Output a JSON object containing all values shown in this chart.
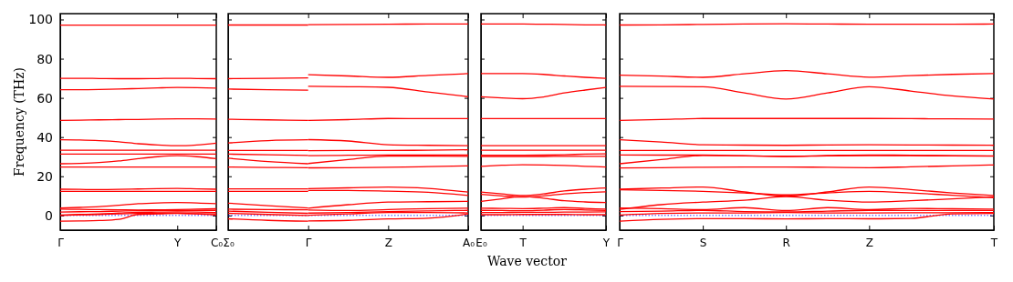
{
  "chart_data": [
    {
      "type": "line",
      "ylabel": "Frequency (THz)",
      "categories": [
        "Γ",
        null,
        null,
        null,
        null,
        null,
        "Y",
        null,
        "C₀"
      ],
      "ylim": [
        -7.5,
        103
      ],
      "yticks": [
        0,
        20,
        40,
        60,
        80,
        100
      ],
      "ref_lines": [
        {
          "axis": "y",
          "value": 0,
          "color": "#0000ff",
          "line_style": "dotted"
        }
      ],
      "series": [
        {
          "color": "#ff0000",
          "values": [
            97.1,
            97.1,
            97.1,
            97.1,
            97.1,
            97.1,
            97.1,
            97.1,
            97.1
          ]
        },
        {
          "color": "#ff0000",
          "values": [
            70,
            70,
            69.9,
            69.8,
            69.8,
            69.9,
            70,
            69.9,
            69.8
          ]
        },
        {
          "color": "#ff0000",
          "values": [
            64.2,
            64.2,
            64.3,
            64.5,
            64.8,
            65.1,
            65.3,
            65.2,
            65
          ]
        },
        {
          "color": "#ff0000",
          "values": [
            48.5,
            48.6,
            48.8,
            48.9,
            49,
            49.2,
            49.3,
            49.3,
            49.2
          ]
        },
        {
          "color": "#ff0000",
          "values": [
            38.6,
            38.5,
            38.2,
            37.6,
            36.6,
            36,
            35.6,
            36,
            36.9
          ]
        },
        {
          "color": "#ff0000",
          "values": [
            33.3,
            33.3,
            33.3,
            33.3,
            33.3,
            33.3,
            33.3,
            33.3,
            33.3
          ]
        },
        {
          "color": "#ff0000",
          "values": [
            31.3,
            31.3,
            31.3,
            31.3,
            31.3,
            31.3,
            31.3,
            31.3,
            31.3
          ]
        },
        {
          "color": "#ff0000",
          "values": [
            26.4,
            26.6,
            27,
            27.8,
            29,
            30,
            30.5,
            30,
            29
          ]
        },
        {
          "color": "#ff0000",
          "values": [
            24.7,
            24.7,
            24.7,
            24.7,
            24.7,
            24.7,
            24.7,
            24.7,
            24.7
          ]
        },
        {
          "color": "#ff0000",
          "values": [
            13.4,
            13.3,
            13.2,
            13.3,
            13.5,
            13.7,
            13.8,
            13.6,
            13.4
          ]
        },
        {
          "color": "#ff0000",
          "values": [
            12.3,
            12.3,
            12.3,
            12.3,
            12.3,
            12.3,
            12.3,
            12.3,
            12.3
          ]
        },
        {
          "color": "#ff0000",
          "values": [
            3.8,
            4.1,
            4.5,
            5.2,
            6,
            6.4,
            6.6,
            6.4,
            6
          ]
        },
        {
          "color": "#ff0000",
          "values": [
            3.2,
            3.1,
            3,
            2.9,
            2.8,
            2.9,
            3,
            3.2,
            3.4
          ]
        },
        {
          "color": "#ff0000",
          "values": [
            1.7,
            1.9,
            2,
            2.2,
            2.4,
            2.5,
            2.5,
            2.6,
            2.6
          ]
        },
        {
          "color": "#ff0000",
          "values": [
            0.2,
            0.5,
            0.8,
            1.2,
            1.6,
            1.7,
            1.8,
            1.7,
            1.5
          ]
        },
        {
          "color": "#ff0000",
          "values": [
            0,
            0.3,
            0.5,
            0.8,
            1,
            1.1,
            1.2,
            0.8,
            0.2
          ]
        },
        {
          "color": "#ff0000",
          "values": [
            -2.9,
            -2.8,
            -2.6,
            -2,
            0.5,
            0.8,
            1,
            0.9,
            0.8
          ]
        }
      ]
    },
    {
      "type": "line",
      "tick_labels": "x",
      "categories": [
        "Σ₀",
        null,
        "Γ",
        null,
        "Z",
        null,
        "A₀"
      ],
      "ylim": [
        -7.5,
        103
      ],
      "yticks": [
        0,
        20,
        40,
        60,
        80,
        100
      ],
      "ref_lines": [
        {
          "axis": "y",
          "value": 0,
          "color": "#0000ff",
          "line_style": "dotted"
        }
      ],
      "series": [
        {
          "color": "#ff0000",
          "values": [
            97.2,
            97.2,
            97.2,
            null,
            null,
            null,
            null
          ]
        },
        {
          "color": "#ff0000",
          "values": [
            69.8,
            70,
            70.2,
            null,
            null,
            null,
            null
          ]
        },
        {
          "color": "#ff0000",
          "values": [
            64.5,
            64.2,
            63.9,
            null,
            null,
            null,
            null
          ]
        },
        {
          "color": "#ff0000",
          "values": [
            49.1,
            48.8,
            48.5,
            null,
            null,
            null,
            null
          ]
        },
        {
          "color": "#ff0000",
          "values": [
            37,
            38.2,
            38.6,
            null,
            null,
            null,
            null
          ]
        },
        {
          "color": "#ff0000",
          "values": [
            33.2,
            33.2,
            33.2,
            null,
            null,
            null,
            null
          ]
        },
        {
          "color": "#ff0000",
          "values": [
            31.3,
            31,
            30.6,
            null,
            null,
            null,
            null
          ]
        },
        {
          "color": "#ff0000",
          "values": [
            29.2,
            27.5,
            26.4,
            null,
            null,
            null,
            null
          ]
        },
        {
          "color": "#ff0000",
          "values": [
            24.7,
            24.5,
            24.4,
            null,
            null,
            null,
            null
          ]
        },
        {
          "color": "#ff0000",
          "values": [
            13.6,
            13.6,
            13.6,
            null,
            null,
            null,
            null
          ]
        },
        {
          "color": "#ff0000",
          "values": [
            12.3,
            12.3,
            12.3,
            null,
            null,
            null,
            null
          ]
        },
        {
          "color": "#ff0000",
          "values": [
            6.3,
            5,
            3.8,
            null,
            null,
            null,
            null
          ]
        },
        {
          "color": "#ff0000",
          "values": [
            3.2,
            3,
            2.9,
            null,
            null,
            null,
            null
          ]
        },
        {
          "color": "#ff0000",
          "values": [
            2.2,
            1.6,
            1.1,
            null,
            null,
            null,
            null
          ]
        },
        {
          "color": "#ff0000",
          "values": [
            1.1,
            0.5,
            0,
            null,
            null,
            null,
            null
          ]
        },
        {
          "color": "#ff0000",
          "values": [
            -1.7,
            -2.5,
            -2.9,
            null,
            null,
            null,
            null
          ]
        },
        {
          "color": "#ff0000",
          "values": [
            null,
            null,
            97.4,
            97.5,
            97.6,
            97.7,
            97.7
          ]
        },
        {
          "color": "#ff0000",
          "values": [
            null,
            null,
            71.8,
            71.2,
            70.5,
            71.5,
            72.4
          ]
        },
        {
          "color": "#ff0000",
          "values": [
            null,
            null,
            65.9,
            65.7,
            65.4,
            63,
            60.6
          ]
        },
        {
          "color": "#ff0000",
          "values": [
            null,
            null,
            48.5,
            48.9,
            49.5,
            49.4,
            49.4
          ]
        },
        {
          "color": "#ff0000",
          "values": [
            null,
            null,
            38.7,
            38,
            36.1,
            35.8,
            35.6
          ]
        },
        {
          "color": "#ff0000",
          "values": [
            null,
            null,
            33.1,
            33.2,
            33.2,
            33.3,
            33.5
          ]
        },
        {
          "color": "#ff0000",
          "values": [
            null,
            null,
            30.5,
            30.7,
            30.9,
            30.9,
            30.8
          ]
        },
        {
          "color": "#ff0000",
          "values": [
            null,
            null,
            26.5,
            28.5,
            30.3,
            30.3,
            30.2
          ]
        },
        {
          "color": "#ff0000",
          "values": [
            null,
            null,
            24.3,
            24.4,
            24.6,
            24.9,
            25.3
          ]
        },
        {
          "color": "#ff0000",
          "values": [
            null,
            null,
            13.7,
            14.1,
            14.5,
            13.8,
            11.9
          ]
        },
        {
          "color": "#ff0000",
          "values": [
            null,
            null,
            12.8,
            12.8,
            12.4,
            11.8,
            10.2
          ]
        },
        {
          "color": "#ff0000",
          "values": [
            null,
            null,
            3.7,
            5.5,
            6.8,
            7,
            7.2
          ]
        },
        {
          "color": "#ff0000",
          "values": [
            null,
            null,
            2.8,
            2.5,
            3,
            3.5,
            3.7
          ]
        },
        {
          "color": "#ff0000",
          "values": [
            null,
            null,
            1.2,
            1.5,
            2,
            2.3,
            2.6
          ]
        },
        {
          "color": "#ff0000",
          "values": [
            null,
            null,
            0.1,
            0.8,
            1.5,
            1.5,
            1.3
          ]
        },
        {
          "color": "#ff0000",
          "values": [
            null,
            null,
            -2.8,
            -2.5,
            -1.8,
            -1.4,
            0.8
          ]
        }
      ]
    },
    {
      "type": "line",
      "tick_labels": "x",
      "xlabel": "Wave vector",
      "categories": [
        "E₀",
        null,
        "T",
        null,
        null,
        null,
        "Y"
      ],
      "ylim": [
        -7.5,
        103
      ],
      "yticks": [
        0,
        20,
        40,
        60,
        80,
        100
      ],
      "ref_lines": [
        {
          "axis": "y",
          "value": 0,
          "color": "#0000ff",
          "line_style": "dotted"
        }
      ],
      "series": [
        {
          "color": "#ff0000",
          "values": [
            97.7,
            97.7,
            97.7,
            97.6,
            97.5,
            97.3,
            97.2
          ]
        },
        {
          "color": "#ff0000",
          "values": [
            72.4,
            72.4,
            72.4,
            72,
            71.2,
            70.5,
            70
          ]
        },
        {
          "color": "#ff0000",
          "values": [
            60.6,
            60,
            59.6,
            60.5,
            62.5,
            64,
            65.3
          ]
        },
        {
          "color": "#ff0000",
          "values": [
            49.4,
            49.4,
            49.4,
            49.4,
            49.4,
            49.4,
            49.4
          ]
        },
        {
          "color": "#ff0000",
          "values": [
            35.6,
            35.6,
            35.6,
            35.6,
            35.6,
            35.6,
            35.6
          ]
        },
        {
          "color": "#ff0000",
          "values": [
            33.3,
            33.3,
            33.3,
            33.3,
            33.3,
            33.3,
            33.3
          ]
        },
        {
          "color": "#ff0000",
          "values": [
            30.7,
            30.7,
            30.7,
            30.8,
            31,
            31.3,
            31.5
          ]
        },
        {
          "color": "#ff0000",
          "values": [
            30.1,
            30.1,
            30.1,
            30.1,
            30.2,
            30.2,
            30.2
          ]
        },
        {
          "color": "#ff0000",
          "values": [
            25.1,
            25.6,
            25.9,
            25.8,
            25.5,
            25.1,
            24.7
          ]
        },
        {
          "color": "#ff0000",
          "values": [
            11.9,
            11,
            10.2,
            11,
            12.5,
            13.4,
            14
          ]
        },
        {
          "color": "#ff0000",
          "values": [
            10.8,
            10,
            9.4,
            10,
            11,
            11.7,
            12.1
          ]
        },
        {
          "color": "#ff0000",
          "values": [
            7.2,
            8.5,
            9.6,
            8.8,
            7.5,
            6.9,
            6.6
          ]
        },
        {
          "color": "#ff0000",
          "values": [
            3.7,
            3.6,
            3.5,
            3.7,
            4,
            3.6,
            3.2
          ]
        },
        {
          "color": "#ff0000",
          "values": [
            2.6,
            2.5,
            2.4,
            2.7,
            3,
            2.8,
            2.5
          ]
        },
        {
          "color": "#ff0000",
          "values": [
            1.5,
            1.5,
            1.6,
            1.6,
            1.7,
            1.7,
            1.8
          ]
        },
        {
          "color": "#ff0000",
          "values": [
            0.4,
            0.4,
            0.5,
            0.5,
            0.5,
            0.4,
            0.4
          ]
        }
      ]
    },
    {
      "type": "line",
      "tick_labels": "x",
      "categories": [
        "Γ",
        null,
        "S",
        null,
        "R",
        null,
        "Z",
        null,
        null,
        "T"
      ],
      "ylim": [
        -7.5,
        103
      ],
      "yticks": [
        0,
        20,
        40,
        60,
        80,
        100
      ],
      "ref_lines": [
        {
          "axis": "y",
          "value": 0,
          "color": "#0000ff",
          "line_style": "dotted"
        }
      ],
      "series": [
        {
          "color": "#ff0000",
          "values": [
            97.2,
            97.3,
            97.5,
            97.7,
            97.8,
            97.7,
            97.6,
            97.6,
            97.6,
            97.7
          ]
        },
        {
          "color": "#ff0000",
          "values": [
            71.6,
            71.1,
            70.5,
            72.3,
            73.9,
            72.3,
            70.6,
            71.4,
            72,
            72.4
          ]
        },
        {
          "color": "#ff0000",
          "values": [
            65.9,
            65.8,
            65.7,
            62.5,
            59.4,
            62.5,
            65.7,
            63.5,
            61,
            59.4
          ]
        },
        {
          "color": "#ff0000",
          "values": [
            48.5,
            49,
            49.5,
            49.5,
            49.5,
            49.5,
            49.5,
            49.4,
            49.3,
            49.2
          ]
        },
        {
          "color": "#ff0000",
          "values": [
            38.6,
            37.5,
            36.1,
            35.9,
            35.8,
            36,
            36.1,
            36,
            35.9,
            35.8
          ]
        },
        {
          "color": "#ff0000",
          "values": [
            33.2,
            33.2,
            33.2,
            33.2,
            33.2,
            33.2,
            33.2,
            33.2,
            33.2,
            33.2
          ]
        },
        {
          "color": "#ff0000",
          "values": [
            30.9,
            30.8,
            30.8,
            30.4,
            30.2,
            30.6,
            30.9,
            30.7,
            30.5,
            30.4
          ]
        },
        {
          "color": "#ff0000",
          "values": [
            26.4,
            28.5,
            30.6,
            30.5,
            30.1,
            30.4,
            30.5,
            30.5,
            30.4,
            30.3
          ]
        },
        {
          "color": "#ff0000",
          "values": [
            24.2,
            24.4,
            24.6,
            24.7,
            24.7,
            24.6,
            24.4,
            24.8,
            25.3,
            25.8
          ]
        },
        {
          "color": "#ff0000",
          "values": [
            13.4,
            14,
            14.5,
            12,
            9.7,
            12,
            14.5,
            13.2,
            11.5,
            10.2
          ]
        },
        {
          "color": "#ff0000",
          "values": [
            13.1,
            12.8,
            12.3,
            11.5,
            10.5,
            11.5,
            12.3,
            11.5,
            10.3,
            9.1
          ]
        },
        {
          "color": "#ff0000",
          "values": [
            3.1,
            5.5,
            6.8,
            7.8,
            9.6,
            7.8,
            6.8,
            7.5,
            8.5,
            9.5
          ]
        },
        {
          "color": "#ff0000",
          "values": [
            3.8,
            3.5,
            3,
            4,
            2.5,
            4,
            3,
            3.6,
            3.4,
            3.2
          ]
        },
        {
          "color": "#ff0000",
          "values": [
            2,
            2.2,
            2.6,
            2,
            1.8,
            2.2,
            2.6,
            2.5,
            2.5,
            2.5
          ]
        },
        {
          "color": "#ff0000",
          "values": [
            0.2,
            1,
            1.3,
            1.3,
            1.5,
            1.3,
            1.3,
            1.4,
            1.4,
            1.5
          ]
        },
        {
          "color": "#ff0000",
          "values": [
            -2.9,
            -2,
            -1.6,
            -1.6,
            -1.8,
            -1.6,
            -1.7,
            -1.5,
            0.8,
            1
          ]
        }
      ]
    }
  ]
}
